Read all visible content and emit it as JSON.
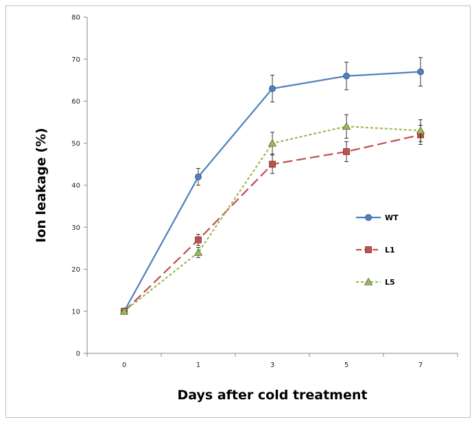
{
  "chart_data": {
    "type": "line",
    "title": "",
    "xlabel": "Days after cold treatment",
    "ylabel": "Ion leakage (%)",
    "categories": [
      "0",
      "1",
      "3",
      "5",
      "7"
    ],
    "ylim": [
      0,
      80
    ],
    "yticks": [
      0,
      10,
      20,
      30,
      40,
      50,
      60,
      70,
      80
    ],
    "grid": false,
    "legend_position": "right",
    "series": [
      {
        "name": "WT",
        "values": [
          10,
          42,
          63,
          66,
          67
        ],
        "errors": [
          0,
          2,
          3.2,
          3.3,
          3.4
        ],
        "color": "#4f81bd",
        "marker": "circle",
        "dash": "solid"
      },
      {
        "name": "L1",
        "values": [
          10,
          27,
          45,
          48,
          52
        ],
        "errors": [
          0,
          1.3,
          2.2,
          2.4,
          2.3
        ],
        "color": "#c0504d",
        "marker": "square",
        "dash": "dashed"
      },
      {
        "name": "L5",
        "values": [
          10,
          24,
          50,
          54,
          53
        ],
        "errors": [
          0,
          1.2,
          2.6,
          2.8,
          2.6
        ],
        "color": "#9bbb59",
        "marker": "triangle",
        "dash": "dotted"
      }
    ]
  }
}
